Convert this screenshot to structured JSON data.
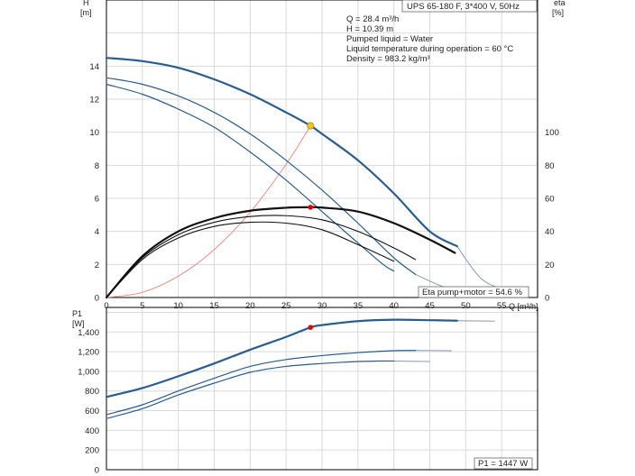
{
  "chart_data": {
    "title": "UPS 65-180 F, 3*400 V, 50Hz",
    "info_lines": [
      "Q = 28.4 m³/h",
      "H = 10.39 m",
      "Pumped liquid = Water",
      "Liquid temperature during operation = 60 °C",
      "Density = 983.2 kg/m³"
    ],
    "x_axis": {
      "label": "Q [m³/h]",
      "range": [
        0,
        60
      ],
      "ticks": [
        0,
        5,
        10,
        15,
        20,
        25,
        30,
        35,
        40,
        45,
        50,
        55
      ]
    },
    "head_chart": {
      "type": "line",
      "y_label_top": "H",
      "y_label_unit": "[m]",
      "y_range": [
        0,
        18
      ],
      "y_ticks": [
        0,
        2,
        4,
        6,
        8,
        10,
        12,
        14
      ],
      "y2_label_top": "eta",
      "y2_label_unit": "[%]",
      "y2_range": [
        0,
        180
      ],
      "y2_ticks": [
        0,
        20,
        40,
        60,
        80,
        100
      ],
      "head_curves": [
        {
          "color": "#2a5d8f",
          "width": 2.2,
          "points": [
            [
              0,
              14.5
            ],
            [
              5,
              14.3
            ],
            [
              10,
              13.9
            ],
            [
              15,
              13.2
            ],
            [
              20,
              12.3
            ],
            [
              25,
              11.2
            ],
            [
              28.4,
              10.39
            ],
            [
              30,
              9.9
            ],
            [
              35,
              8.3
            ],
            [
              40,
              6.3
            ],
            [
              45,
              4.0
            ],
            [
              48.8,
              3.1
            ]
          ]
        },
        {
          "color": "#2a5d8f",
          "width": 1.2,
          "points": [
            [
              0,
              13.3
            ],
            [
              5,
              12.9
            ],
            [
              10,
              12.2
            ],
            [
              15,
              11.2
            ],
            [
              20,
              9.9
            ],
            [
              25,
              8.3
            ],
            [
              30,
              6.5
            ],
            [
              35,
              4.5
            ],
            [
              40,
              2.4
            ],
            [
              43,
              1.4
            ]
          ]
        },
        {
          "color": "#2a5d8f",
          "width": 1.2,
          "points": [
            [
              0,
              12.9
            ],
            [
              5,
              12.3
            ],
            [
              10,
              11.4
            ],
            [
              15,
              10.3
            ],
            [
              20,
              8.8
            ],
            [
              25,
              7.1
            ],
            [
              30,
              5.2
            ],
            [
              35,
              3.3
            ],
            [
              38.5,
              2.0
            ],
            [
              40,
              1.6
            ]
          ]
        }
      ],
      "head_tails": [
        {
          "color": "#8a9ab0",
          "points": [
            [
              48.8,
              3.1
            ],
            [
              52,
              1.2
            ],
            [
              55,
              0.5
            ]
          ]
        },
        {
          "color": "#8a9ab0",
          "points": [
            [
              43,
              1.4
            ],
            [
              46,
              0.8
            ],
            [
              48,
              0.5
            ]
          ]
        }
      ],
      "eta_curves": [
        {
          "color": "#111111",
          "width": 2.2,
          "points": [
            [
              0,
              0
            ],
            [
              5,
              25
            ],
            [
              10,
              40
            ],
            [
              15,
              48
            ],
            [
              20,
              52.5
            ],
            [
              25,
              54.3
            ],
            [
              28.4,
              54.6
            ],
            [
              30,
              54.4
            ],
            [
              35,
              52
            ],
            [
              40,
              45
            ],
            [
              45,
              35
            ],
            [
              48.5,
              27
            ]
          ]
        },
        {
          "color": "#111111",
          "width": 1.1,
          "points": [
            [
              0,
              0
            ],
            [
              5,
              24
            ],
            [
              10,
              38
            ],
            [
              15,
              45.5
            ],
            [
              20,
              49
            ],
            [
              25,
              49.5
            ],
            [
              30,
              47
            ],
            [
              35,
              40
            ],
            [
              40,
              30
            ],
            [
              43,
              23
            ]
          ]
        },
        {
          "color": "#111111",
          "width": 1.1,
          "points": [
            [
              0,
              0
            ],
            [
              5,
              23
            ],
            [
              10,
              36
            ],
            [
              15,
              43
            ],
            [
              20,
              45.5
            ],
            [
              25,
              45
            ],
            [
              30,
              41
            ],
            [
              35,
              32
            ],
            [
              40,
              22
            ]
          ]
        }
      ],
      "system_curve": {
        "color": "#f08a80",
        "points": [
          [
            0,
            0
          ],
          [
            5,
            0.31
          ],
          [
            10,
            1.29
          ],
          [
            15,
            2.9
          ],
          [
            20,
            5.16
          ],
          [
            25,
            8.06
          ],
          [
            28.4,
            10.39
          ]
        ]
      },
      "operating_point": {
        "x": 28.4,
        "y": 10.39,
        "color": "#f5c518"
      },
      "eta_point": {
        "x": 28.4,
        "y": 54.6,
        "color": "#e00000"
      },
      "eta_note": "Eta pump+motor = 54.6 %"
    },
    "power_chart": {
      "type": "line",
      "y_label_top": "P1",
      "y_label_unit": "[W]",
      "y_range": [
        0,
        1650
      ],
      "y_ticks": [
        0,
        200,
        400,
        600,
        800,
        1000,
        1200,
        1400
      ],
      "y_tick_labels": [
        "0",
        "200",
        "400",
        "600",
        "800",
        "1,000",
        "1,200",
        "1,400"
      ],
      "power_curves": [
        {
          "color": "#2a5d8f",
          "width": 2.2,
          "points": [
            [
              0,
              740
            ],
            [
              5,
              830
            ],
            [
              10,
              950
            ],
            [
              15,
              1080
            ],
            [
              20,
              1220
            ],
            [
              25,
              1350
            ],
            [
              28.4,
              1447
            ],
            [
              30,
              1470
            ],
            [
              35,
              1510
            ],
            [
              40,
              1525
            ],
            [
              45,
              1520
            ],
            [
              48.8,
              1515
            ]
          ]
        },
        {
          "color": "#2a5d8f",
          "width": 1.2,
          "points": [
            [
              0,
              560
            ],
            [
              5,
              660
            ],
            [
              10,
              800
            ],
            [
              15,
              930
            ],
            [
              20,
              1050
            ],
            [
              25,
              1120
            ],
            [
              30,
              1160
            ],
            [
              35,
              1190
            ],
            [
              40,
              1210
            ],
            [
              43,
              1212
            ]
          ]
        },
        {
          "color": "#2a5d8f",
          "width": 1.2,
          "points": [
            [
              0,
              520
            ],
            [
              5,
              620
            ],
            [
              10,
              760
            ],
            [
              15,
              880
            ],
            [
              20,
              990
            ],
            [
              25,
              1050
            ],
            [
              30,
              1080
            ],
            [
              35,
              1100
            ],
            [
              38.5,
              1105
            ],
            [
              40,
              1105
            ]
          ]
        }
      ],
      "power_tails": [
        {
          "color": "#8a9ab0",
          "points": [
            [
              48.8,
              1515
            ],
            [
              54,
              1510
            ]
          ]
        },
        {
          "color": "#8a9ab0",
          "points": [
            [
              43,
              1212
            ],
            [
              48,
              1210
            ]
          ]
        },
        {
          "color": "#8a9ab0",
          "points": [
            [
              40,
              1105
            ],
            [
              45,
              1100
            ]
          ]
        }
      ],
      "operating_point": {
        "x": 28.4,
        "y": 1447,
        "color": "#e00000"
      },
      "p1_note": "P1 = 1447 W"
    }
  }
}
